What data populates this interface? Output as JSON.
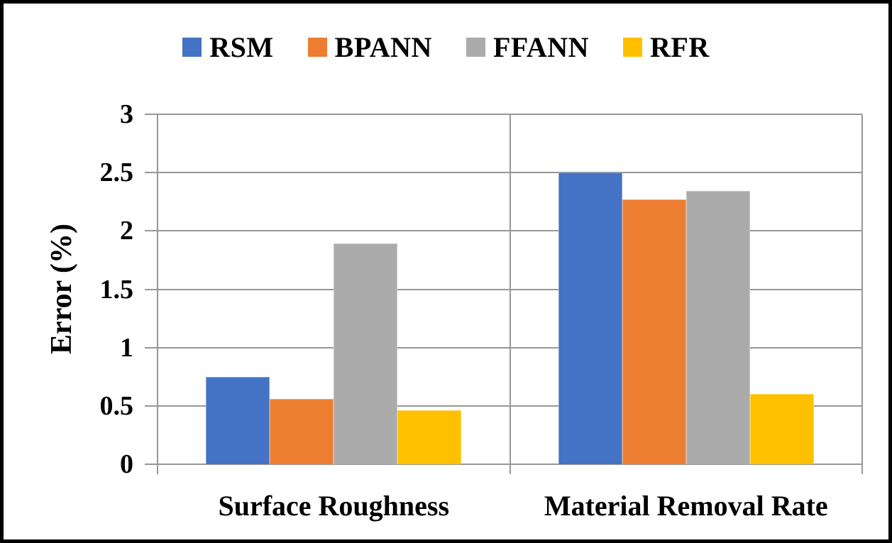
{
  "chart_data": {
    "type": "bar",
    "title": "",
    "ylabel": "Error (%)",
    "xlabel": "",
    "categories": [
      "Surface Roughness",
      "Material Removal Rate"
    ],
    "series": [
      {
        "name": "RSM",
        "color": "#4472C4",
        "values": [
          0.75,
          2.5
        ]
      },
      {
        "name": "BPANN",
        "color": "#ED7D31",
        "values": [
          0.56,
          2.27
        ]
      },
      {
        "name": "FFANN",
        "color": "#ABABAB",
        "values": [
          1.89,
          2.34
        ]
      },
      {
        "name": "RFR",
        "color": "#FFC000",
        "values": [
          0.46,
          0.6
        ]
      }
    ],
    "ylim": [
      0,
      3
    ],
    "ytick_step": 0.5,
    "yticks": [
      "0",
      "0.5",
      "1",
      "1.5",
      "2",
      "2.5",
      "3"
    ],
    "grid": true,
    "legend_position": "top",
    "gridline_color": "#979797",
    "text_color": "#000000",
    "frame_color": "#000000"
  }
}
